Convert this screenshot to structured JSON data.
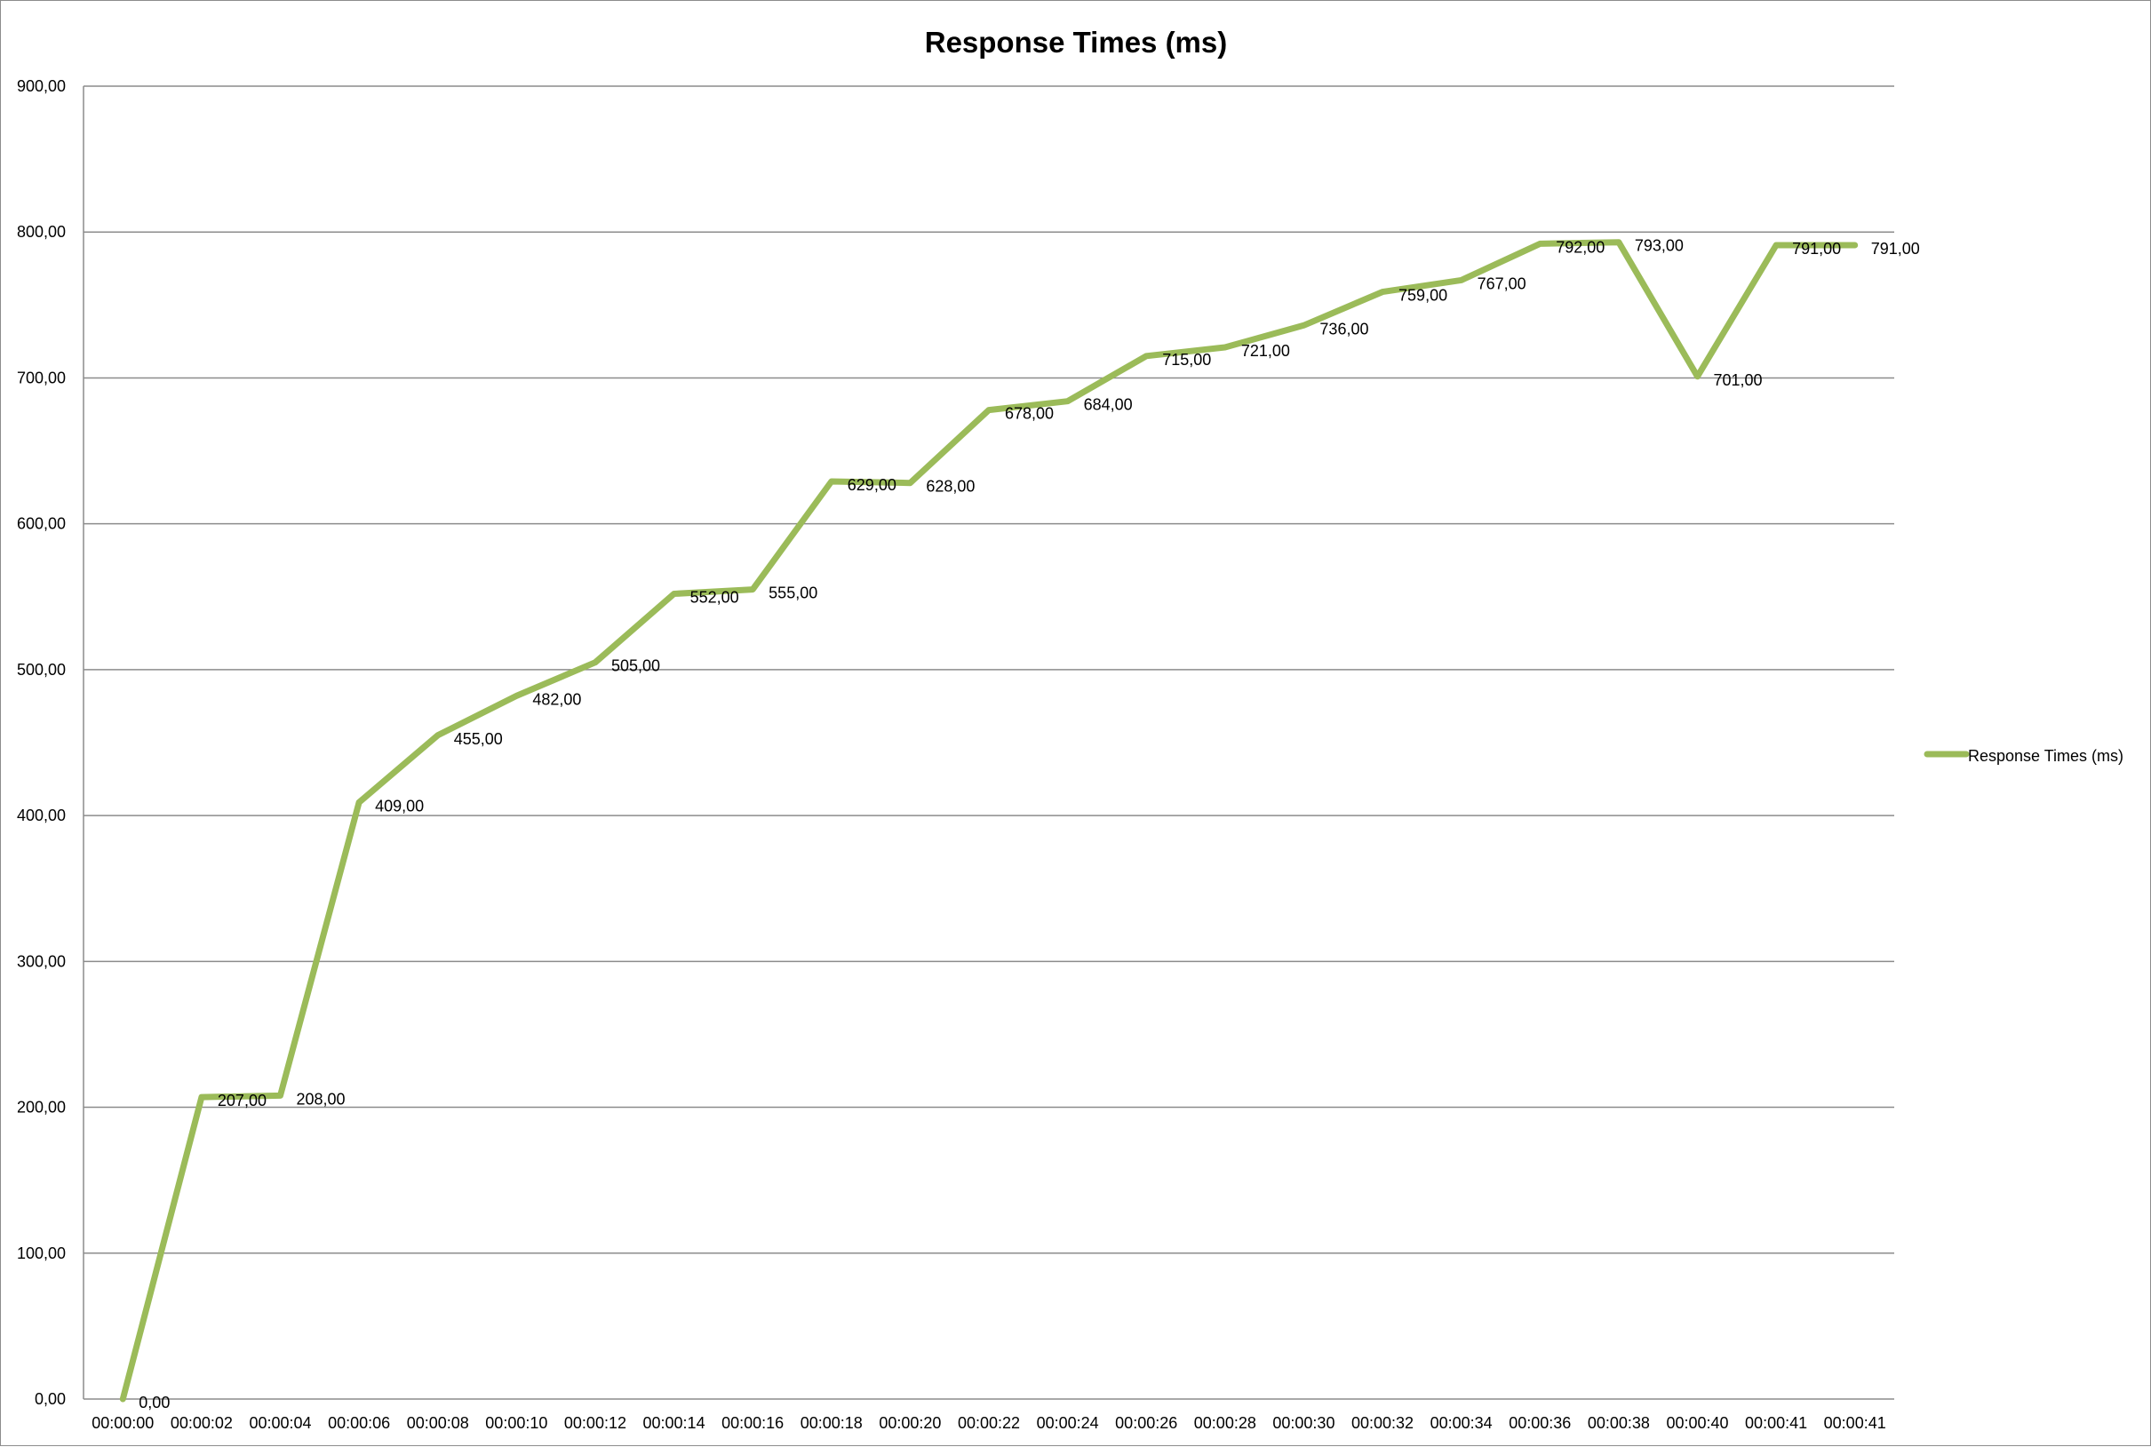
{
  "chart_data": {
    "type": "line",
    "title": "Response Times (ms)",
    "xlabel": "",
    "ylabel": "",
    "ylim": [
      0,
      900
    ],
    "y_ticks": [
      "0,00",
      "100,00",
      "200,00",
      "300,00",
      "400,00",
      "500,00",
      "600,00",
      "700,00",
      "800,00",
      "900,00"
    ],
    "categories": [
      "00:00:00",
      "00:00:02",
      "00:00:04",
      "00:00:06",
      "00:00:08",
      "00:00:10",
      "00:00:12",
      "00:00:14",
      "00:00:16",
      "00:00:18",
      "00:00:20",
      "00:00:22",
      "00:00:24",
      "00:00:26",
      "00:00:28",
      "00:00:30",
      "00:00:32",
      "00:00:34",
      "00:00:36",
      "00:00:38",
      "00:00:40",
      "00:00:41",
      "00:00:41"
    ],
    "grid": true,
    "legend_position": "right",
    "series": [
      {
        "name": "Response Times (ms)",
        "color": "#9bbb59",
        "values": [
          0,
          207,
          208,
          409,
          455,
          482,
          505,
          552,
          555,
          629,
          628,
          678,
          684,
          715,
          721,
          736,
          759,
          767,
          792,
          793,
          701,
          791,
          791
        ],
        "labels": [
          "0,00",
          "207,00",
          "208,00",
          "409,00",
          "455,00",
          "482,00",
          "505,00",
          "552,00",
          "555,00",
          "629,00",
          "628,00",
          "678,00",
          "684,00",
          "715,00",
          "721,00",
          "736,00",
          "759,00",
          "767,00",
          "792,00",
          "793,00",
          "701,00",
          "791,00",
          "791,00"
        ]
      }
    ]
  }
}
